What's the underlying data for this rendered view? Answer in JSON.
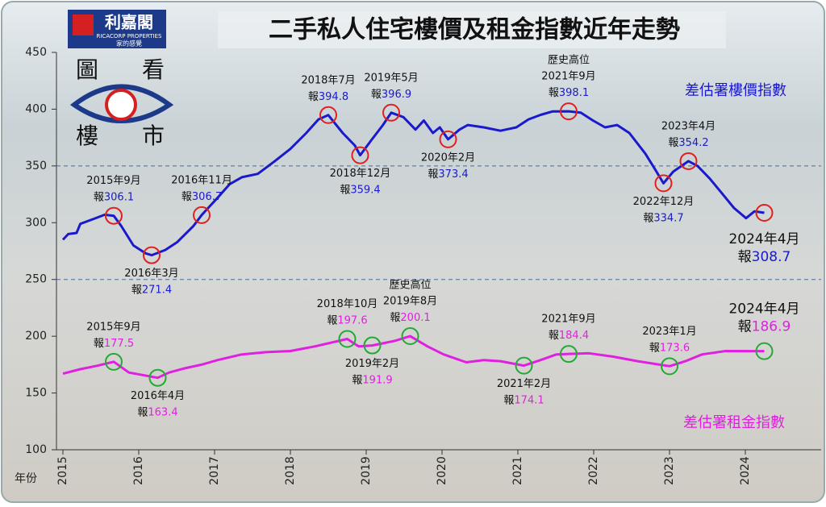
{
  "logo": {
    "name": "利嘉閣",
    "english": "RICACORP PROPERTIES",
    "slogan": "家的感覺"
  },
  "badge": [
    "圖",
    "看",
    "樓",
    "市"
  ],
  "chart_data": {
    "type": "line",
    "title": "二手私人住宅樓價及租金指數近年走勢",
    "x_label": "年份",
    "xlim": [
      2015,
      2025
    ],
    "xticks": [
      2015,
      2016,
      2017,
      2018,
      2019,
      2020,
      2021,
      2022,
      2023,
      2024
    ],
    "ylim": [
      100,
      450
    ],
    "yticks": [
      100,
      150,
      200,
      250,
      300,
      350,
      400,
      450
    ],
    "dashed_lines": [
      350,
      250
    ],
    "series": [
      {
        "name": "差估署樓價指數",
        "color": "#1a1acc",
        "marker_color": "#e02020",
        "x": [
          2015.0,
          2015.07,
          2015.18,
          2015.23,
          2015.39,
          2015.55,
          2015.67,
          2015.77,
          2015.93,
          2016.09,
          2016.17,
          2016.35,
          2016.51,
          2016.72,
          2016.83,
          2017.04,
          2017.2,
          2017.36,
          2017.57,
          2017.79,
          2018.0,
          2018.21,
          2018.37,
          2018.5,
          2018.69,
          2018.85,
          2018.92,
          2019.06,
          2019.22,
          2019.33,
          2019.49,
          2019.65,
          2019.76,
          2019.88,
          2019.97,
          2020.08,
          2020.23,
          2020.34,
          2020.55,
          2020.77,
          2020.98,
          2021.14,
          2021.3,
          2021.46,
          2021.67,
          2021.83,
          2021.99,
          2022.15,
          2022.31,
          2022.47,
          2022.68,
          2022.81,
          2022.92,
          2023.05,
          2023.25,
          2023.37,
          2023.53,
          2023.69,
          2023.85,
          2024.01,
          2024.12,
          2024.25
        ],
        "values": [
          285,
          290,
          291,
          299,
          303,
          307,
          306.1,
          297,
          280,
          273,
          271.4,
          276,
          283,
          297,
          306.7,
          322,
          334,
          340,
          343,
          354,
          365,
          379,
          391,
          394.8,
          379,
          368,
          359.4,
          372,
          386,
          396.9,
          393,
          382,
          390,
          379,
          384,
          373.4,
          382,
          386,
          384,
          381,
          384,
          391,
          395,
          398,
          398.1,
          397,
          390,
          384,
          386,
          379,
          361,
          347,
          334.7,
          345,
          354.2,
          350,
          339,
          326,
          313,
          304,
          310,
          308.7
        ],
        "annotations": [
          {
            "label": "2015年9月",
            "prefix": "報",
            "x": 2015.67,
            "value": 306.1,
            "position": "above"
          },
          {
            "label": "2016年3月",
            "prefix": "報",
            "x": 2016.17,
            "value": 271.4,
            "position": "below"
          },
          {
            "label": "2016年11月",
            "prefix": "報",
            "x": 2016.83,
            "value": 306.7,
            "position": "above"
          },
          {
            "label": "2018年7月",
            "prefix": "報",
            "x": 2018.5,
            "value": 394.8,
            "position": "above"
          },
          {
            "label": "2018年12月",
            "prefix": "報",
            "x": 2018.92,
            "value": 359.4,
            "position": "below"
          },
          {
            "label": "2019年5月",
            "prefix": "報",
            "x": 2019.33,
            "value": 396.9,
            "position": "above"
          },
          {
            "label": "2020年2月",
            "prefix": "報",
            "x": 2020.08,
            "value": 373.4,
            "position": "below"
          },
          {
            "note": "歷史高位",
            "label": "2021年9月",
            "prefix": "報",
            "x": 2021.67,
            "value": 398.1,
            "position": "above"
          },
          {
            "label": "2022年12月",
            "prefix": "報",
            "x": 2022.92,
            "value": 334.7,
            "position": "below"
          },
          {
            "label": "2023年4月",
            "prefix": "報",
            "x": 2023.25,
            "value": 354.2,
            "position": "above"
          },
          {
            "label": "2024年4月",
            "prefix": "報",
            "x": 2024.25,
            "value": 308.7,
            "position": "below",
            "emphasis": true
          }
        ]
      },
      {
        "name": "差估署租金指數",
        "color": "#e020e0",
        "marker_color": "#22aa33",
        "x": [
          2015.0,
          2015.23,
          2015.45,
          2015.67,
          2015.87,
          2016.25,
          2016.4,
          2016.62,
          2016.83,
          2017.04,
          2017.36,
          2017.68,
          2018.0,
          2018.32,
          2018.75,
          2018.9,
          2019.08,
          2019.38,
          2019.58,
          2019.81,
          2020.02,
          2020.32,
          2020.55,
          2020.77,
          2021.08,
          2021.3,
          2021.51,
          2021.67,
          2021.94,
          2022.26,
          2022.58,
          2023.0,
          2023.21,
          2023.43,
          2023.74,
          2024.25
        ],
        "values": [
          167,
          171,
          174,
          177.5,
          168,
          163.4,
          168,
          172,
          175,
          179,
          184,
          186,
          187,
          191,
          197.6,
          191,
          191.9,
          196,
          200.1,
          191,
          184,
          177,
          179,
          178,
          174.1,
          179,
          184,
          184.4,
          185,
          182,
          178,
          173.6,
          178,
          184,
          187,
          186.9
        ],
        "annotations": [
          {
            "label": "2015年9月",
            "prefix": "報",
            "x": 2015.67,
            "value": 177.5,
            "position": "above"
          },
          {
            "label": "2016年4月",
            "prefix": "報",
            "x": 2016.25,
            "value": 163.4,
            "position": "below"
          },
          {
            "label": "2018年10月",
            "prefix": "報",
            "x": 2018.75,
            "value": 197.6,
            "position": "above"
          },
          {
            "label": "2019年2月",
            "prefix": "報",
            "x": 2019.08,
            "value": 191.9,
            "position": "below"
          },
          {
            "note": "歷史高位",
            "label": "2019年8月",
            "prefix": "報",
            "x": 2019.58,
            "value": 200.1,
            "position": "above"
          },
          {
            "label": "2021年2月",
            "prefix": "報",
            "x": 2021.08,
            "value": 174.1,
            "position": "below"
          },
          {
            "label": "2021年9月",
            "prefix": "報",
            "x": 2021.67,
            "value": 184.4,
            "position": "above"
          },
          {
            "label": "2023年1月",
            "prefix": "報",
            "x": 2023.0,
            "value": 173.6,
            "position": "above"
          },
          {
            "label": "2024年4月",
            "prefix": "報",
            "x": 2024.25,
            "value": 186.9,
            "position": "above",
            "emphasis": true
          }
        ]
      }
    ]
  }
}
